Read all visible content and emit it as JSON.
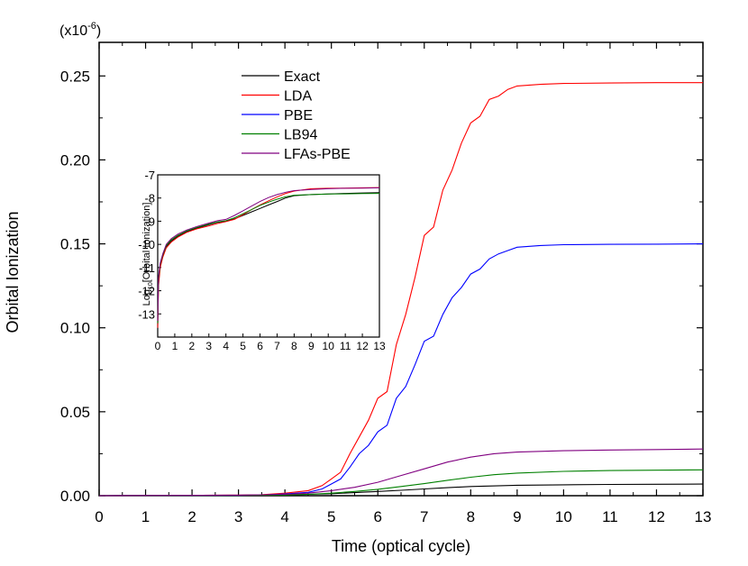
{
  "chart_data": {
    "type": "line",
    "title": "",
    "xlabel": "Time (optical cycle)",
    "ylabel": "Orbital Ionization",
    "y_multiplier_base": "(x10",
    "y_multiplier_exp": "-6",
    "y_multiplier_close": ")",
    "xlim": [
      0,
      13
    ],
    "ylim": [
      0,
      0.27
    ],
    "x_ticks": [
      "0",
      "1",
      "2",
      "3",
      "4",
      "5",
      "6",
      "7",
      "8",
      "9",
      "10",
      "11",
      "12",
      "13"
    ],
    "y_ticks": [
      "0.00",
      "0.05",
      "0.10",
      "0.15",
      "0.20",
      "0.25"
    ],
    "legend_position": "top-left",
    "grid": false,
    "series": [
      {
        "name": "Exact",
        "color": "#000000",
        "x": [
          0,
          3,
          4,
          4.5,
          5,
          5.5,
          6,
          6.5,
          7,
          7.5,
          8,
          9,
          10,
          11,
          12,
          13
        ],
        "y": [
          0,
          0.0003,
          0.0005,
          0.0008,
          0.0012,
          0.0018,
          0.0025,
          0.0032,
          0.004,
          0.0048,
          0.0055,
          0.0062,
          0.0065,
          0.0067,
          0.0068,
          0.0069
        ]
      },
      {
        "name": "LDA",
        "color": "#ff0000",
        "x": [
          0,
          3,
          3.5,
          4,
          4.5,
          4.8,
          5,
          5.2,
          5.4,
          5.6,
          5.8,
          6.0,
          6.2,
          6.4,
          6.6,
          6.8,
          7.0,
          7.2,
          7.4,
          7.6,
          7.8,
          8.0,
          8.2,
          8.4,
          8.6,
          8.8,
          9.0,
          9.5,
          10,
          11,
          12,
          13
        ],
        "y": [
          0,
          0.0003,
          0.0006,
          0.0015,
          0.003,
          0.006,
          0.01,
          0.014,
          0.025,
          0.035,
          0.045,
          0.058,
          0.062,
          0.09,
          0.108,
          0.13,
          0.155,
          0.16,
          0.182,
          0.194,
          0.21,
          0.222,
          0.226,
          0.236,
          0.238,
          0.242,
          0.244,
          0.245,
          0.2455,
          0.2458,
          0.246,
          0.246
        ]
      },
      {
        "name": "PBE",
        "color": "#0000ff",
        "x": [
          0,
          3,
          3.5,
          4,
          4.5,
          4.8,
          5,
          5.2,
          5.4,
          5.6,
          5.8,
          6.0,
          6.2,
          6.4,
          6.6,
          6.8,
          7.0,
          7.2,
          7.4,
          7.6,
          7.8,
          8.0,
          8.2,
          8.4,
          8.6,
          8.8,
          9.0,
          9.5,
          10,
          11,
          12,
          13
        ],
        "y": [
          0,
          0.0002,
          0.0004,
          0.001,
          0.002,
          0.004,
          0.007,
          0.01,
          0.017,
          0.025,
          0.03,
          0.038,
          0.042,
          0.058,
          0.065,
          0.078,
          0.092,
          0.095,
          0.108,
          0.118,
          0.124,
          0.132,
          0.135,
          0.141,
          0.144,
          0.146,
          0.148,
          0.149,
          0.1495,
          0.1497,
          0.1498,
          0.15
        ]
      },
      {
        "name": "LB94",
        "color": "#008000",
        "x": [
          0,
          3,
          4,
          4.5,
          5,
          5.5,
          6,
          6.5,
          7,
          7.5,
          8,
          8.5,
          9,
          10,
          11,
          12,
          13
        ],
        "y": [
          0,
          0.0002,
          0.0004,
          0.0008,
          0.0015,
          0.0025,
          0.0038,
          0.0055,
          0.0072,
          0.0092,
          0.011,
          0.0125,
          0.0135,
          0.0145,
          0.015,
          0.0152,
          0.0154
        ]
      },
      {
        "name": "LFAs-PBE",
        "color": "#800080",
        "x": [
          0,
          3,
          4,
          4.5,
          5,
          5.5,
          6,
          6.5,
          7,
          7.5,
          8,
          8.5,
          9,
          10,
          11,
          12,
          13
        ],
        "y": [
          0,
          0.0003,
          0.0008,
          0.0015,
          0.003,
          0.005,
          0.008,
          0.012,
          0.016,
          0.02,
          0.023,
          0.025,
          0.026,
          0.0268,
          0.0272,
          0.0275,
          0.0278
        ]
      }
    ],
    "inset": {
      "type": "line",
      "ylabel_base": "Log",
      "ylabel_sub": "10",
      "ylabel_rest": "[Orbital Ionization]",
      "xlim": [
        0,
        13
      ],
      "ylim": [
        -14,
        -7
      ],
      "x_ticks": [
        "0",
        "1",
        "2",
        "3",
        "4",
        "5",
        "6",
        "7",
        "8",
        "9",
        "10",
        "11",
        "12",
        "13"
      ],
      "y_ticks": [
        "-7",
        "-8",
        "-9",
        "-10",
        "-11",
        "-12",
        "-13"
      ],
      "series": [
        {
          "name": "Exact",
          "color": "#000000",
          "x": [
            0,
            0.05,
            0.15,
            0.3,
            0.5,
            0.8,
            1.2,
            1.7,
            2.3,
            3,
            3.5,
            4,
            4.5,
            5,
            5.5,
            6,
            6.5,
            7,
            7.5,
            8,
            9,
            10,
            11,
            12,
            13
          ],
          "y": [
            -13.5,
            -11.6,
            -10.9,
            -10.5,
            -10.1,
            -9.85,
            -9.65,
            -9.45,
            -9.3,
            -9.15,
            -9.05,
            -9.0,
            -8.9,
            -8.75,
            -8.6,
            -8.45,
            -8.3,
            -8.15,
            -8.0,
            -7.9,
            -7.85,
            -7.83,
            -7.8,
            -7.78,
            -7.77
          ]
        },
        {
          "name": "LDA",
          "color": "#ff0000",
          "x": [
            0,
            0.05,
            0.15,
            0.3,
            0.5,
            0.8,
            1.2,
            1.7,
            2.3,
            3,
            3.5,
            4,
            4.5,
            5,
            5.5,
            6,
            6.5,
            7,
            7.5,
            8,
            9,
            10,
            11,
            12,
            13
          ],
          "y": [
            -13.6,
            -11.8,
            -11.0,
            -10.55,
            -10.15,
            -9.9,
            -9.68,
            -9.48,
            -9.33,
            -9.2,
            -9.1,
            -9.02,
            -8.92,
            -8.72,
            -8.5,
            -8.3,
            -8.12,
            -7.95,
            -7.8,
            -7.7,
            -7.6,
            -7.58,
            -7.57,
            -7.56,
            -7.55
          ]
        },
        {
          "name": "LB94",
          "color": "#008000",
          "x": [
            0,
            0.05,
            0.15,
            0.3,
            0.5,
            0.8,
            1.2,
            1.7,
            2.3,
            3,
            3.5,
            4,
            4.5,
            5,
            5.5,
            6,
            6.5,
            7,
            7.5,
            8,
            9,
            10,
            11,
            12,
            13
          ],
          "y": [
            -13.4,
            -11.5,
            -10.85,
            -10.45,
            -10.05,
            -9.8,
            -9.6,
            -9.42,
            -9.27,
            -9.12,
            -9.03,
            -8.98,
            -8.85,
            -8.68,
            -8.5,
            -8.32,
            -8.18,
            -8.05,
            -7.95,
            -7.88,
            -7.85,
            -7.83,
            -7.82,
            -7.81,
            -7.8
          ]
        },
        {
          "name": "LFAs-PBE",
          "color": "#800080",
          "x": [
            0,
            0.05,
            0.15,
            0.3,
            0.5,
            0.8,
            1.2,
            1.7,
            2.3,
            3,
            3.5,
            4,
            4.5,
            5,
            5.5,
            6,
            6.5,
            7,
            7.5,
            8,
            9,
            10,
            11,
            12,
            13
          ],
          "y": [
            -13.3,
            -11.4,
            -10.8,
            -10.4,
            -10.0,
            -9.75,
            -9.55,
            -9.38,
            -9.23,
            -9.08,
            -8.98,
            -8.92,
            -8.75,
            -8.55,
            -8.35,
            -8.15,
            -7.98,
            -7.85,
            -7.75,
            -7.68,
            -7.63,
            -7.6,
            -7.58,
            -7.57,
            -7.56
          ]
        }
      ]
    }
  }
}
